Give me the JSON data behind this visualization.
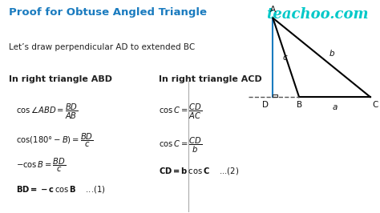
{
  "title": "Proof for Obtuse Angled Triangle",
  "title_color": "#1a7bbf",
  "teachoo_text": "teachoo.com",
  "teachoo_color": "#00c8c8",
  "bg_color": "#ffffff",
  "subtitle": "Let’s draw perpendicular AD to extended BC",
  "left_header": "In right triangle ABD",
  "right_header": "In right triangle ACD",
  "left_lines": [
    "cos ∠ ABD = BD/AB",
    "cos (180°− B) = BD/c",
    "−cos B = BD/c",
    "BD = −c cos B    ...(1)"
  ],
  "right_lines": [
    "cos C = CD/AC",
    "cos C = CD/b",
    "CD = b cos C    ...(2)"
  ],
  "triangle_color": "#000000",
  "ad_color": "#1a7bbf",
  "dashed_color": "#555555"
}
